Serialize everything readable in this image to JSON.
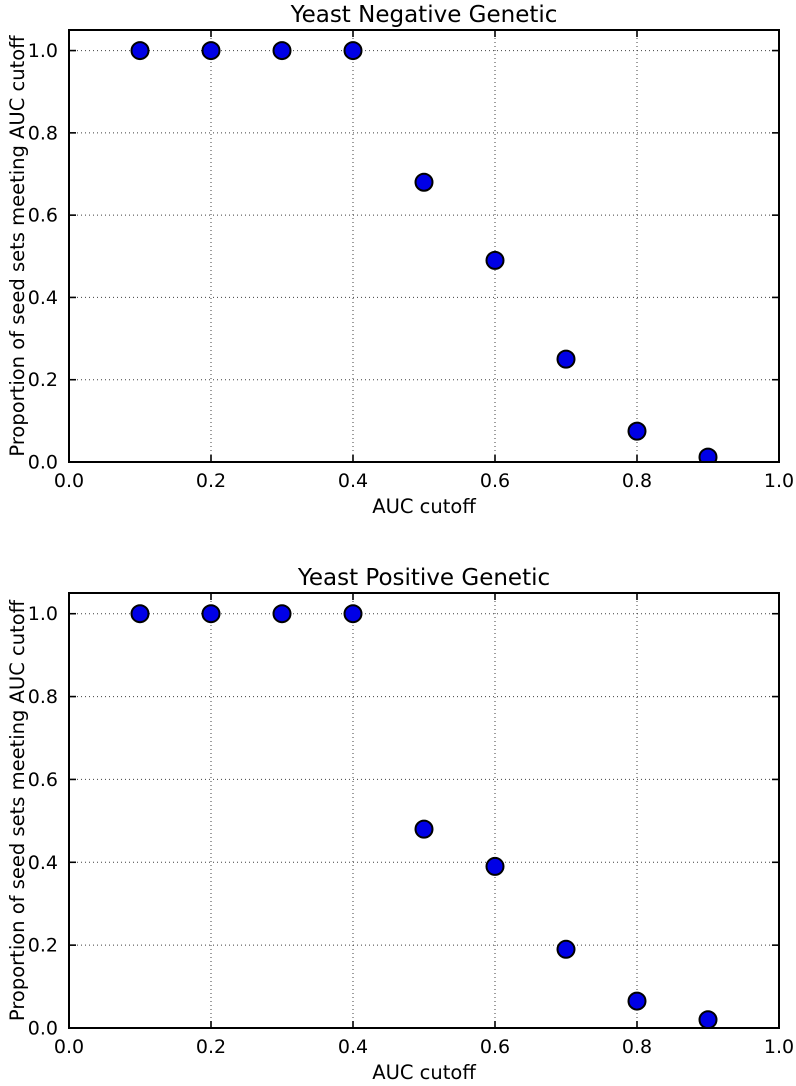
{
  "figure": {
    "background_color": "#ffffff",
    "marker_fill_color": "#0000e6",
    "marker_edge_color": "#000000",
    "axis_color": "#000000",
    "grid_color": "#000000"
  },
  "chart_data": [
    {
      "type": "scatter",
      "title": "Yeast Negative Genetic",
      "xlabel": "AUC cutoff",
      "ylabel": "Proportion of seed sets meeting AUC cutoff",
      "xlim": [
        0.0,
        1.0
      ],
      "ylim": [
        0.0,
        1.05
      ],
      "xticks": [
        0.0,
        0.2,
        0.4,
        0.6,
        0.8,
        1.0
      ],
      "yticks": [
        0.0,
        0.2,
        0.4,
        0.6,
        0.8,
        1.0
      ],
      "xtick_labels": [
        "0.0",
        "0.2",
        "0.4",
        "0.6",
        "0.8",
        "1.0"
      ],
      "ytick_labels": [
        "0.0",
        "0.2",
        "0.4",
        "0.6",
        "0.8",
        "1.0"
      ],
      "grid": true,
      "grid_style": "dotted",
      "legend": "none",
      "points": [
        {
          "x": 0.1,
          "y": 1.0
        },
        {
          "x": 0.2,
          "y": 1.0
        },
        {
          "x": 0.3,
          "y": 1.0
        },
        {
          "x": 0.4,
          "y": 1.0
        },
        {
          "x": 0.5,
          "y": 0.68
        },
        {
          "x": 0.6,
          "y": 0.49
        },
        {
          "x": 0.7,
          "y": 0.25
        },
        {
          "x": 0.8,
          "y": 0.075
        },
        {
          "x": 0.9,
          "y": 0.012
        }
      ]
    },
    {
      "type": "scatter",
      "title": "Yeast Positive Genetic",
      "xlabel": "AUC cutoff",
      "ylabel": "Proportion of seed sets meeting AUC cutoff",
      "xlim": [
        0.0,
        1.0
      ],
      "ylim": [
        0.0,
        1.05
      ],
      "xticks": [
        0.0,
        0.2,
        0.4,
        0.6,
        0.8,
        1.0
      ],
      "yticks": [
        0.0,
        0.2,
        0.4,
        0.6,
        0.8,
        1.0
      ],
      "xtick_labels": [
        "0.0",
        "0.2",
        "0.4",
        "0.6",
        "0.8",
        "1.0"
      ],
      "ytick_labels": [
        "0.0",
        "0.2",
        "0.4",
        "0.6",
        "0.8",
        "1.0"
      ],
      "grid": true,
      "grid_style": "dotted",
      "legend": "none",
      "points": [
        {
          "x": 0.1,
          "y": 1.0
        },
        {
          "x": 0.2,
          "y": 1.0
        },
        {
          "x": 0.3,
          "y": 1.0
        },
        {
          "x": 0.4,
          "y": 1.0
        },
        {
          "x": 0.5,
          "y": 0.48
        },
        {
          "x": 0.6,
          "y": 0.39
        },
        {
          "x": 0.7,
          "y": 0.19
        },
        {
          "x": 0.8,
          "y": 0.065
        },
        {
          "x": 0.9,
          "y": 0.02
        }
      ]
    }
  ]
}
